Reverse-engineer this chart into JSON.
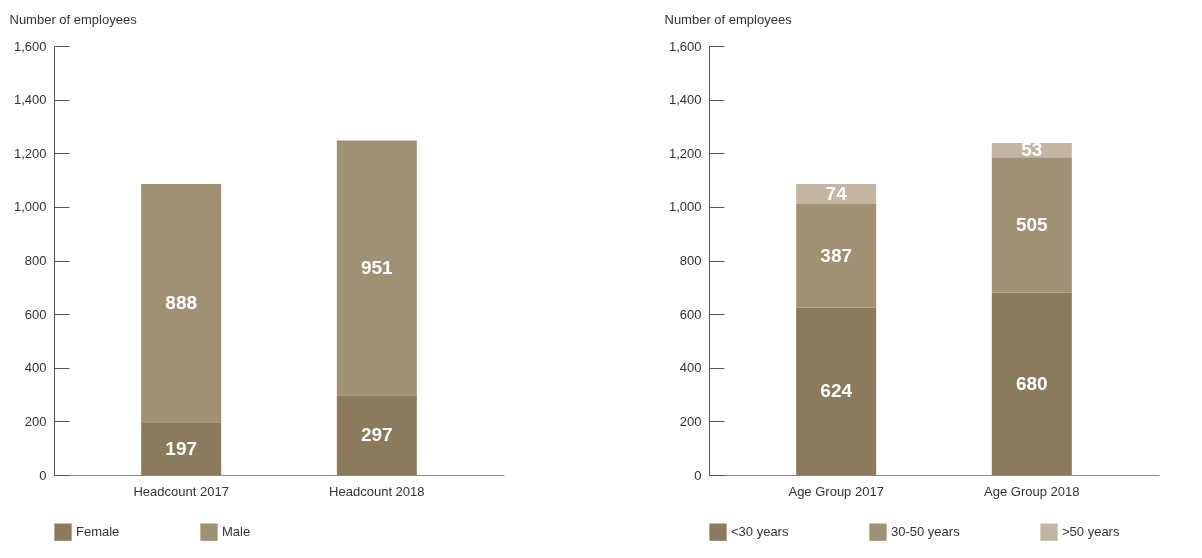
{
  "chart_data": [
    {
      "type": "bar",
      "stacked": true,
      "ylabel": "Number of employees",
      "categories": [
        "Headcount 2017",
        "Headcount 2018"
      ],
      "series": [
        {
          "name": "Female",
          "color": "#8b7b5c",
          "values": [
            197,
            297
          ]
        },
        {
          "name": "Male",
          "color": "#a09174",
          "values": [
            888,
            951
          ]
        }
      ],
      "ylim": [
        0,
        1600
      ],
      "yticks": [
        0,
        200,
        400,
        600,
        800,
        {
          "value": 1000,
          "label": "1,000"
        },
        {
          "value": 1200,
          "label": "1,200"
        },
        {
          "value": 1400,
          "label": "1,400"
        },
        {
          "value": 1600,
          "label": "1,600"
        }
      ],
      "data_labels": true,
      "legend": "bottom",
      "grid": false
    },
    {
      "type": "bar",
      "stacked": true,
      "ylabel": "Number of employees",
      "categories": [
        "Age Group 2017",
        "Age Group 2018"
      ],
      "series": [
        {
          "name": "<30 years",
          "color": "#8b7b5c",
          "values": [
            624,
            680
          ]
        },
        {
          "name": "30-50 years",
          "color": "#a09174",
          "values": [
            387,
            505
          ]
        },
        {
          "name": ">50 years",
          "color": "#c2b6a2",
          "values": [
            74,
            53
          ]
        }
      ],
      "ylim": [
        0,
        1600
      ],
      "yticks": [
        0,
        200,
        400,
        600,
        800,
        {
          "value": 1000,
          "label": "1,000"
        },
        {
          "value": 1200,
          "label": "1,200"
        },
        {
          "value": 1400,
          "label": "1,400"
        },
        {
          "value": 1600,
          "label": "1,600"
        }
      ],
      "data_labels": true,
      "legend": "bottom",
      "grid": false
    }
  ]
}
